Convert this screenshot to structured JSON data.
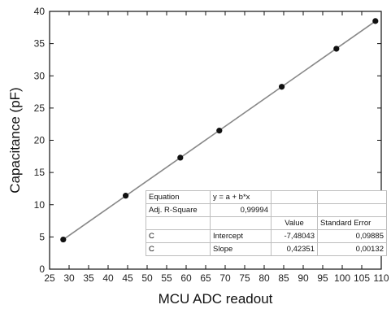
{
  "chart_data": {
    "type": "scatter",
    "xlabel": "MCU ADC readout",
    "ylabel": "Capacitance (pF)",
    "xlim": [
      25,
      110
    ],
    "ylim": [
      0,
      40
    ],
    "xticks": [
      25,
      30,
      35,
      40,
      45,
      50,
      55,
      60,
      65,
      70,
      75,
      80,
      85,
      90,
      95,
      100,
      105,
      110
    ],
    "yticks": [
      0,
      5,
      10,
      15,
      20,
      25,
      30,
      35,
      40
    ],
    "grid": false,
    "points": [
      {
        "x": 28.5,
        "y": 4.6
      },
      {
        "x": 44.5,
        "y": 11.4
      },
      {
        "x": 58.5,
        "y": 17.3
      },
      {
        "x": 68.5,
        "y": 21.5
      },
      {
        "x": 84.5,
        "y": 28.3
      },
      {
        "x": 98.5,
        "y": 34.2
      },
      {
        "x": 108.5,
        "y": 38.5
      }
    ],
    "fit_line": {
      "intercept": -7.48043,
      "slope": 0.42351,
      "x_range": [
        28,
        109
      ]
    },
    "marker_color": "#111111",
    "line_color": "#888888",
    "fit_table": {
      "rows": [
        [
          "Equation",
          "y = a + b*x",
          "",
          ""
        ],
        [
          "Adj. R-Square",
          "0,99994",
          "",
          ""
        ],
        [
          "",
          "",
          "Value",
          "Standard Error"
        ],
        [
          "C",
          "Intercept",
          "-7,48043",
          "0,09885"
        ],
        [
          "C",
          "Slope",
          "0,42351",
          "0,00132"
        ]
      ]
    }
  }
}
